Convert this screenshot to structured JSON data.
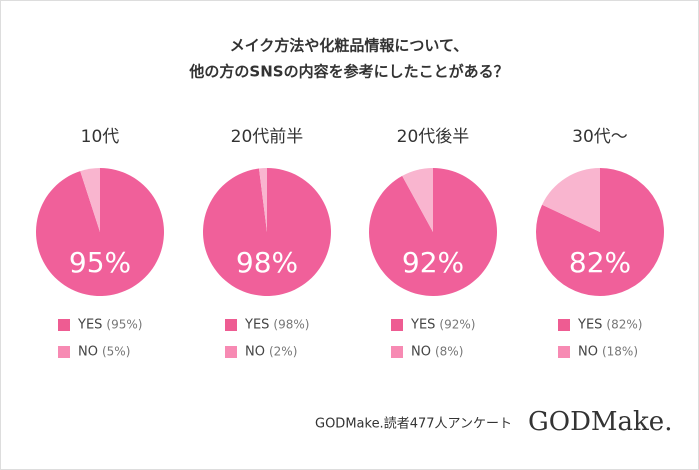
{
  "title": [
    "メイク方法や化粧品情報について、",
    "他の方のSNSの内容を参考にしたことがある？"
  ],
  "chart_data": [
    {
      "type": "pie",
      "title": "10代",
      "categories": [
        "YES",
        "NO"
      ],
      "values": [
        95,
        5
      ],
      "value_labels": [
        "(95%)",
        "(5%)"
      ],
      "center_label": "95%",
      "colors": [
        "#f0609a",
        "#f9b5cf"
      ],
      "legend_colors": [
        "#ee5c92",
        "#f78ab3"
      ]
    },
    {
      "type": "pie",
      "title": "20代前半",
      "categories": [
        "YES",
        "NO"
      ],
      "values": [
        98,
        2
      ],
      "value_labels": [
        "(98%)",
        "(2%)"
      ],
      "center_label": "98%",
      "colors": [
        "#f0609a",
        "#f9b5cf"
      ],
      "legend_colors": [
        "#ee5c92",
        "#f78ab3"
      ]
    },
    {
      "type": "pie",
      "title": "20代後半",
      "categories": [
        "YES",
        "NO"
      ],
      "values": [
        92,
        8
      ],
      "value_labels": [
        "(92%)",
        "(8%)"
      ],
      "center_label": "92%",
      "colors": [
        "#f0609a",
        "#f9b5cf"
      ],
      "legend_colors": [
        "#ee5c92",
        "#f78ab3"
      ]
    },
    {
      "type": "pie",
      "title": "30代〜",
      "categories": [
        "YES",
        "NO"
      ],
      "values": [
        82,
        18
      ],
      "value_labels": [
        "(82%)",
        "(18%)"
      ],
      "center_label": "82%",
      "colors": [
        "#f0609a",
        "#f9b5cf"
      ],
      "legend_colors": [
        "#ee5c92",
        "#f78ab3"
      ]
    }
  ],
  "footer": "GODMake.読者477人アンケート",
  "logo": "GODMake."
}
